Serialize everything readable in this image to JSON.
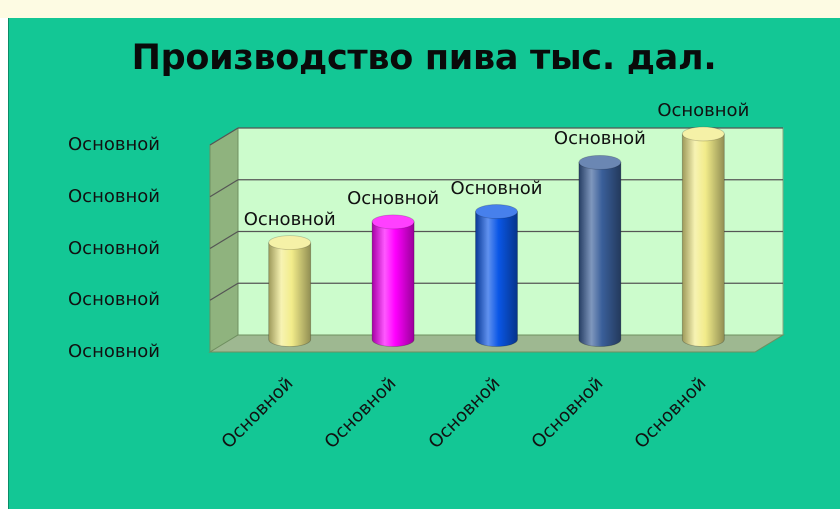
{
  "chart_data": {
    "type": "bar",
    "style": "3d-cylinder",
    "title": "Производство пива тыс. дал.",
    "xlabel": "",
    "ylabel": "",
    "categories": [
      "Основной",
      "Основной",
      "Основной",
      "Основной",
      "Основной"
    ],
    "y_tick_labels": [
      "Основной",
      "Основной",
      "Основной",
      "Основной",
      "Основной"
    ],
    "data_labels": [
      "Основной",
      "Основной",
      "Основной",
      "Основной",
      "Основной"
    ],
    "values": [
      1.95,
      2.35,
      2.55,
      3.5,
      4.05
    ],
    "ylim": [
      0,
      4
    ],
    "grid": true,
    "legend": "none",
    "bar_colors": [
      "#f2ec8a",
      "#ff00ff",
      "#0a56e6",
      "#3a5f9a",
      "#f2ec8a"
    ],
    "background_color": "#13c795",
    "plot_wall_color": "#ccfccc"
  }
}
